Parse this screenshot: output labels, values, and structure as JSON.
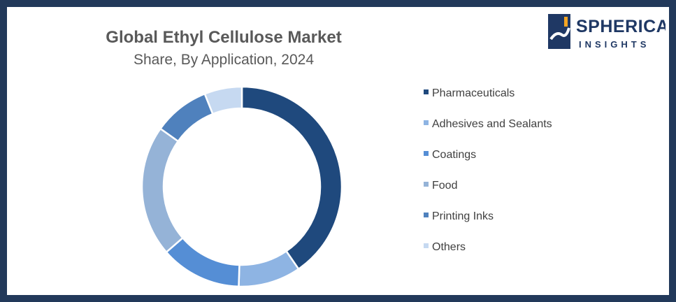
{
  "chart_data": {
    "type": "pie",
    "title": "Global Ethyl Cellulose Market",
    "subtitle": "Share, By Application, 2024",
    "donut": true,
    "legend_position": "right",
    "categories": [
      "Pharmaceuticals",
      "Adhesives and Sealants",
      "Coatings",
      "Food",
      "Printing Inks",
      "Others"
    ],
    "values": [
      40,
      10,
      13,
      21,
      9,
      6
    ],
    "colors": [
      "#1f497d",
      "#8eb4e3",
      "#558ed5",
      "#95b3d7",
      "#4f81bd",
      "#c6d9f1"
    ]
  },
  "logo": {
    "line1": "SPHERICAL",
    "line2": "INSIGHTS",
    "colors": {
      "primary": "#1f3864",
      "accent": "#f5a623"
    }
  },
  "colors": {
    "frame": "#22395a",
    "background": "#ffffff",
    "text": "#595959"
  }
}
